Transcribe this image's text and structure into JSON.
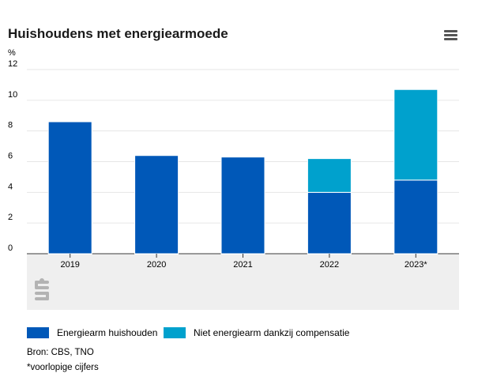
{
  "title": "Huishoudens met energiearmoede",
  "menu_icon": "hamburger-menu-icon",
  "logo_icon": "cbs-logo-icon",
  "source": "Bron: CBS, TNO",
  "footnote": "*voorlopige cijfers",
  "colors": {
    "series1": "#0058b8",
    "series2": "#00a1cd",
    "grid": "#e6e6e6",
    "plot_bg_bottom": "#efefef"
  },
  "chart_data": {
    "type": "bar",
    "stacked": true,
    "title": "Huishoudens met energiearmoede",
    "ylabel": "%",
    "ylim": [
      0,
      12
    ],
    "yticks": [
      0,
      2,
      4,
      6,
      8,
      10,
      12
    ],
    "categories": [
      "2019",
      "2020",
      "2021",
      "2022",
      "2023*"
    ],
    "series": [
      {
        "name": "Energiearm huishouden",
        "values": [
          8.6,
          6.4,
          6.3,
          4.0,
          4.8
        ]
      },
      {
        "name": "Niet energiearm dankzij compensatie",
        "values": [
          0,
          0,
          0,
          2.2,
          5.9
        ]
      }
    ],
    "legend_position": "bottom"
  }
}
